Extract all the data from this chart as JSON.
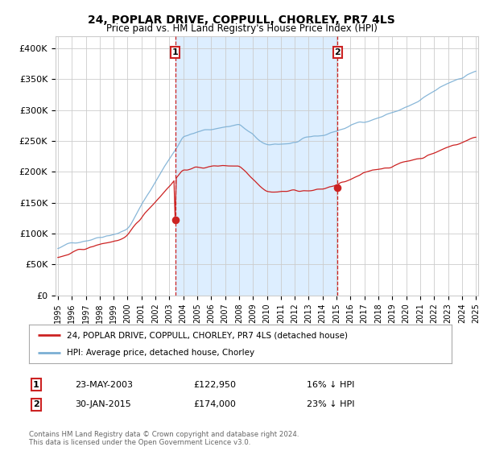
{
  "title": "24, POPLAR DRIVE, COPPULL, CHORLEY, PR7 4LS",
  "subtitle": "Price paid vs. HM Land Registry's House Price Index (HPI)",
  "ylim": [
    0,
    420000
  ],
  "yticks": [
    0,
    50000,
    100000,
    150000,
    200000,
    250000,
    300000,
    350000,
    400000
  ],
  "ytick_labels": [
    "£0",
    "£50K",
    "£100K",
    "£150K",
    "£200K",
    "£250K",
    "£300K",
    "£350K",
    "£400K"
  ],
  "hpi_color": "#7bafd4",
  "price_color": "#cc2222",
  "shade_color": "#ddeeff",
  "marker1_month_idx": 101,
  "marker1_price": 122950,
  "marker2_month_idx": 241,
  "marker2_price": 174000,
  "marker1_date_str": "23-MAY-2003",
  "marker1_price_str": "£122,950",
  "marker1_hpi_str": "16% ↓ HPI",
  "marker2_date_str": "30-JAN-2015",
  "marker2_price_str": "£174,000",
  "marker2_hpi_str": "23% ↓ HPI",
  "legend_label1": "24, POPLAR DRIVE, COPPULL, CHORLEY, PR7 4LS (detached house)",
  "legend_label2": "HPI: Average price, detached house, Chorley",
  "footer": "Contains HM Land Registry data © Crown copyright and database right 2024.\nThis data is licensed under the Open Government Licence v3.0.",
  "background_color": "#ffffff",
  "grid_color": "#cccccc",
  "x_start_year": 1995,
  "x_end_year": 2025,
  "n_months": 361,
  "year_tick_months": [
    0,
    12,
    24,
    36,
    48,
    60,
    72,
    84,
    96,
    108,
    120,
    132,
    144,
    156,
    168,
    180,
    192,
    204,
    216,
    228,
    240,
    252,
    264,
    276,
    288,
    300,
    312,
    324,
    336,
    348,
    360
  ],
  "year_tick_labels": [
    "1995",
    "1996",
    "1997",
    "1998",
    "1999",
    "2000",
    "2001",
    "2002",
    "2003",
    "2004",
    "2005",
    "2006",
    "2007",
    "2008",
    "2009",
    "2010",
    "2011",
    "2012",
    "2013",
    "2014",
    "2015",
    "2016",
    "2017",
    "2018",
    "2019",
    "2020",
    "2021",
    "2022",
    "2023",
    "2024",
    "2025"
  ]
}
